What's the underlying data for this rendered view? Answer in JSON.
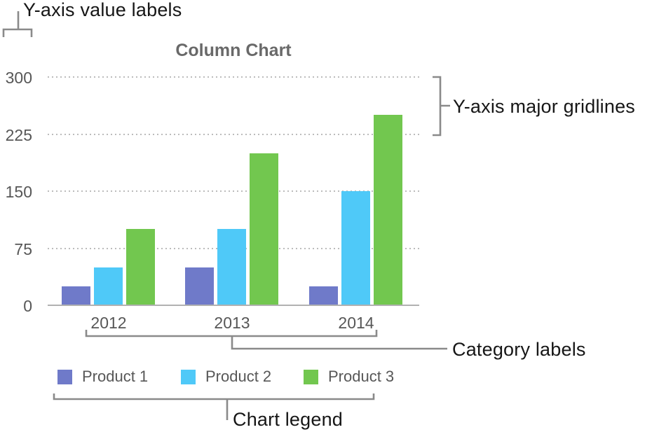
{
  "annotations": {
    "y_value_labels": "Y-axis value labels",
    "y_major_gridlines": "Y-axis major gridlines",
    "category_labels": "Category labels",
    "chart_legend": "Chart legend"
  },
  "chart_data": {
    "type": "bar",
    "title": "Column Chart",
    "categories": [
      "2012",
      "2013",
      "2014"
    ],
    "series": [
      {
        "name": "Product 1",
        "color": "#6F7AC9",
        "values": [
          25,
          50,
          25
        ]
      },
      {
        "name": "Product 2",
        "color": "#4FC9F8",
        "values": [
          50,
          100,
          150
        ]
      },
      {
        "name": "Product 3",
        "color": "#72C74F",
        "values": [
          100,
          200,
          250
        ]
      }
    ],
    "y_ticks": [
      0,
      75,
      150,
      225,
      300
    ],
    "ylim": [
      0,
      300
    ],
    "xlabel": "",
    "ylabel": "",
    "gridlines": "horizontal dotted at y-axis major ticks",
    "legend_position": "bottom"
  },
  "style": {
    "connector_color": "#8a8a8a",
    "gridline_color": "#bcbcbc",
    "baseline_color": "#b1b1b1",
    "axis_text_color": "#575757",
    "title_color": "#696969",
    "callout_text_color": "#161616"
  }
}
